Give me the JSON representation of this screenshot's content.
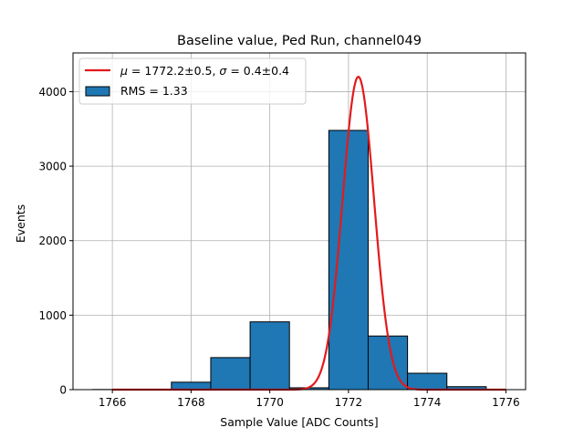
{
  "chart_data": {
    "type": "bar",
    "title": "Baseline value, Ped Run, channel049",
    "xlabel": "Sample Value [ADC Counts]",
    "ylabel": "Events",
    "xlim": [
      1765.0,
      1776.5
    ],
    "ylim": [
      0,
      4520
    ],
    "x_ticks": [
      1766,
      1768,
      1770,
      1772,
      1774,
      1776
    ],
    "x_tick_labels": [
      "1766",
      "1768",
      "1770",
      "1772",
      "1774",
      "1776"
    ],
    "y_ticks": [
      0,
      1000,
      2000,
      3000,
      4000
    ],
    "y_tick_labels": [
      "0",
      "1000",
      "2000",
      "3000",
      "4000"
    ],
    "grid": true,
    "legend_position": "top-left",
    "histogram": {
      "name": "RMS = 1.33",
      "color": "#1f77b4",
      "edgecolor": "#000000",
      "bins": [
        {
          "x0": 1765.5,
          "x1": 1766.5,
          "count": 2
        },
        {
          "x0": 1766.5,
          "x1": 1767.5,
          "count": 5
        },
        {
          "x0": 1767.5,
          "x1": 1768.5,
          "count": 100
        },
        {
          "x0": 1768.5,
          "x1": 1769.5,
          "count": 430
        },
        {
          "x0": 1769.5,
          "x1": 1770.5,
          "count": 910
        },
        {
          "x0": 1770.5,
          "x1": 1771.5,
          "count": 25
        },
        {
          "x0": 1771.5,
          "x1": 1772.5,
          "count": 3480
        },
        {
          "x0": 1772.5,
          "x1": 1773.5,
          "count": 720
        },
        {
          "x0": 1773.5,
          "x1": 1774.5,
          "count": 220
        },
        {
          "x0": 1774.5,
          "x1": 1775.5,
          "count": 40
        }
      ]
    },
    "fit": {
      "name": "μ = 1772.2±0.5, σ = 0.4±0.4",
      "color": "#e31a1c",
      "amplitude": 4200,
      "mu": 1772.25,
      "sigma": 0.4,
      "x_range": [
        1766,
        1776
      ]
    },
    "legend": [
      {
        "label_parts": [
          "μ",
          " = 1772.2±0.5, ",
          "σ",
          " = 0.4±0.4"
        ],
        "kind": "line",
        "color": "#e31a1c"
      },
      {
        "label": "RMS = 1.33",
        "kind": "patch",
        "color": "#1f77b4"
      }
    ]
  }
}
